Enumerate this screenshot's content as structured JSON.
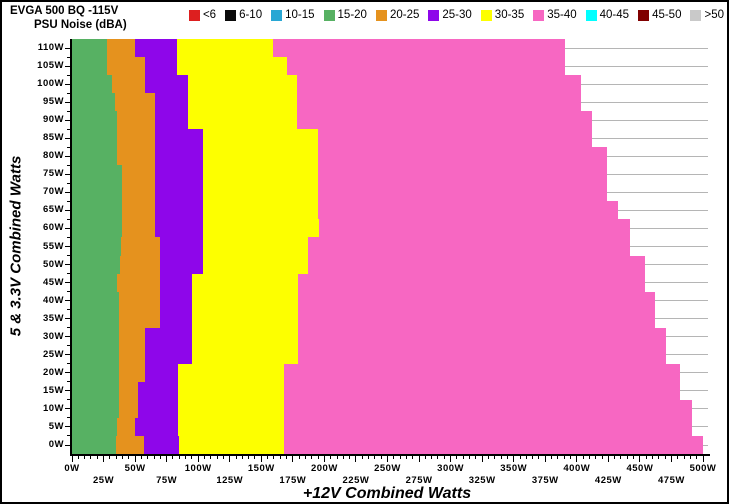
{
  "window": {
    "background": "#ffffff",
    "border_color": "#000000",
    "gridline_color": "#b5b5b5"
  },
  "header": {
    "title_line1": "EVGA 500 BQ -115V",
    "title_line2": "PSU Noise (dBA)"
  },
  "legend": {
    "items": [
      {
        "label": "<6",
        "color": "#dd1f1f"
      },
      {
        "label": "6-10",
        "color": "#0a0a0a"
      },
      {
        "label": "10-15",
        "color": "#28a7d4"
      },
      {
        "label": "15-20",
        "color": "#57b163"
      },
      {
        "label": "20-25",
        "color": "#e5921e"
      },
      {
        "label": "25-30",
        "color": "#8e06ea"
      },
      {
        "label": "30-35",
        "color": "#fdff00"
      },
      {
        "label": "35-40",
        "color": "#f767c2"
      },
      {
        "label": "40-45",
        "color": "#00ffff"
      },
      {
        "label": "45-50",
        "color": "#800000"
      },
      {
        "label": ">50",
        "color": "#c9c9c9"
      }
    ]
  },
  "chart_data": {
    "type": "heatmap",
    "title": "EVGA 500 BQ -115V PSU Noise (dBA)",
    "xlabel": "+12V Combined Watts",
    "ylabel": "5 & 3.3V Combined Watts",
    "xlim": [
      0,
      500
    ],
    "ylim": [
      0,
      110
    ],
    "x_major_tick_step": 25,
    "x_minor_tick_step": 5,
    "y_major_tick_step": 5,
    "y_minor_tick_step": 2.5,
    "grid": "horizontal-right-of-data",
    "legend_position": "top",
    "x_tick_labels_row1": [
      "0W",
      "50W",
      "100W",
      "150W",
      "200W",
      "250W",
      "300W",
      "350W",
      "400W",
      "450W",
      "500W"
    ],
    "x_tick_labels_row2": [
      "25W",
      "75W",
      "125W",
      "175W",
      "225W",
      "275W",
      "325W",
      "375W",
      "425W",
      "475W"
    ],
    "y_tick_labels": [
      "110W",
      "105W",
      "100W",
      "95W",
      "90W",
      "85W",
      "80W",
      "75W",
      "70W",
      "65W",
      "60W",
      "55W",
      "50W",
      "45W",
      "40W",
      "35W",
      "30W",
      "25W",
      "20W",
      "15W",
      "10W",
      "5W",
      "0W"
    ],
    "bands_in_plot": [
      "15-20",
      "20-25",
      "25-30",
      "30-35",
      "35-40"
    ],
    "rows_note": "each row = 5 & 3.3V combined watts value; ends = cumulative +12V watt where each band (15-20,20-25,25-30,30-35,35-40 dBA) ends; no data beyond last value",
    "rows": [
      {
        "y": 110,
        "ends": [
          28,
          50,
          83,
          159,
          391
        ]
      },
      {
        "y": 105,
        "ends": [
          28,
          58,
          83,
          170,
          391
        ]
      },
      {
        "y": 100,
        "ends": [
          32,
          58,
          92,
          178,
          403
        ]
      },
      {
        "y": 95,
        "ends": [
          34,
          66,
          92,
          178,
          403
        ]
      },
      {
        "y": 90,
        "ends": [
          36,
          66,
          92,
          178,
          412
        ]
      },
      {
        "y": 85,
        "ends": [
          36,
          66,
          104,
          195,
          412
        ]
      },
      {
        "y": 80,
        "ends": [
          36,
          66,
          104,
          195,
          424
        ]
      },
      {
        "y": 75,
        "ends": [
          40,
          66,
          104,
          195,
          424
        ]
      },
      {
        "y": 70,
        "ends": [
          40,
          66,
          104,
          195,
          424
        ]
      },
      {
        "y": 65,
        "ends": [
          40,
          66,
          104,
          195,
          433
        ]
      },
      {
        "y": 60,
        "ends": [
          40,
          66,
          104,
          196,
          442
        ]
      },
      {
        "y": 55,
        "ends": [
          39,
          70,
          104,
          187,
          442
        ]
      },
      {
        "y": 50,
        "ends": [
          38,
          70,
          104,
          187,
          454
        ]
      },
      {
        "y": 45,
        "ends": [
          36,
          70,
          95,
          179,
          454
        ]
      },
      {
        "y": 40,
        "ends": [
          37,
          70,
          95,
          179,
          462
        ]
      },
      {
        "y": 35,
        "ends": [
          37,
          70,
          95,
          179,
          462
        ]
      },
      {
        "y": 30,
        "ends": [
          37,
          58,
          95,
          179,
          471
        ]
      },
      {
        "y": 25,
        "ends": [
          37,
          58,
          95,
          179,
          471
        ]
      },
      {
        "y": 20,
        "ends": [
          37,
          58,
          84,
          168,
          482
        ]
      },
      {
        "y": 15,
        "ends": [
          37,
          52,
          84,
          168,
          482
        ]
      },
      {
        "y": 10,
        "ends": [
          37,
          52,
          84,
          168,
          491
        ]
      },
      {
        "y": 5,
        "ends": [
          36,
          50,
          84,
          168,
          491
        ]
      },
      {
        "y": 0,
        "ends": [
          35,
          57,
          85,
          168,
          500
        ]
      }
    ]
  }
}
